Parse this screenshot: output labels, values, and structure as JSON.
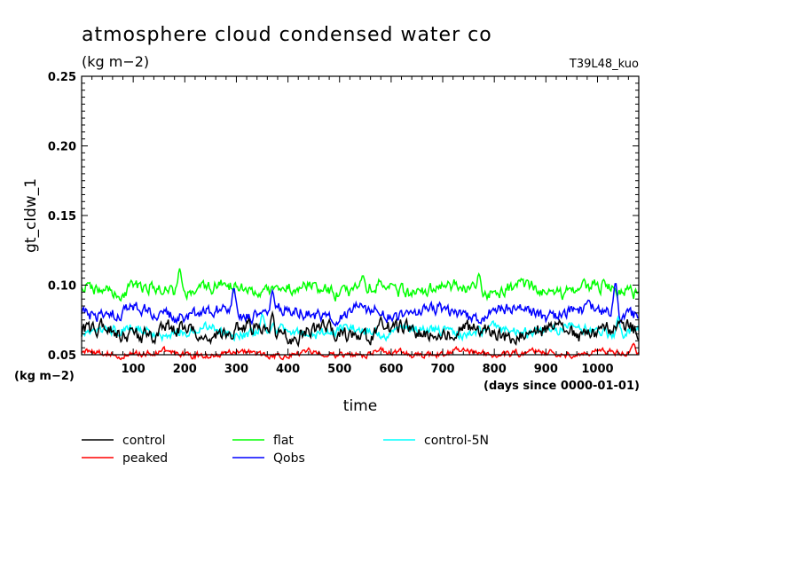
{
  "header": {
    "title": "atmosphere cloud condensed water co",
    "units": "(kg m−2)",
    "experiment": "T39L48_kuo"
  },
  "chart_data": {
    "type": "line",
    "ylabel": "gt_cldw_1",
    "xlabel": "time",
    "y_units_label": "(kg m−2)",
    "x_units_label": "(days since 0000-01-01)",
    "xlim": [
      0,
      1080
    ],
    "ylim": [
      0.05,
      0.25
    ],
    "xticks": [
      100,
      200,
      300,
      400,
      500,
      600,
      700,
      800,
      900,
      1000
    ],
    "yticks": [
      0.05,
      0.1,
      0.15,
      0.2,
      0.25
    ],
    "ytick_labels": [
      "0.05",
      "0.10",
      "0.15",
      "0.20",
      "0.25"
    ],
    "grid": false,
    "legend_position": "bottom",
    "series": [
      {
        "name": "control",
        "color": "#000000",
        "mean": 0.066,
        "amp": 0.006,
        "peaks": [
          {
            "x": 370,
            "y": 0.08
          },
          {
            "x": 580,
            "y": 0.077
          },
          {
            "x": 1045,
            "y": 0.075
          }
        ]
      },
      {
        "name": "peaked",
        "color": "#ff0000",
        "mean": 0.051,
        "amp": 0.0025,
        "peaks": [
          {
            "x": 1070,
            "y": 0.058
          }
        ]
      },
      {
        "name": "flat",
        "color": "#00ff00",
        "mean": 0.097,
        "amp": 0.005,
        "peaks": [
          {
            "x": 190,
            "y": 0.112
          },
          {
            "x": 545,
            "y": 0.107
          },
          {
            "x": 770,
            "y": 0.108
          }
        ]
      },
      {
        "name": "Qobs",
        "color": "#0000ff",
        "mean": 0.08,
        "amp": 0.005,
        "peaks": [
          {
            "x": 295,
            "y": 0.098
          },
          {
            "x": 370,
            "y": 0.096
          },
          {
            "x": 1035,
            "y": 0.102
          }
        ]
      },
      {
        "name": "control-5N",
        "color": "#00ffff",
        "mean": 0.067,
        "amp": 0.004,
        "peaks": [
          {
            "x": 350,
            "y": 0.079
          },
          {
            "x": 1040,
            "y": 0.077
          }
        ]
      }
    ]
  }
}
